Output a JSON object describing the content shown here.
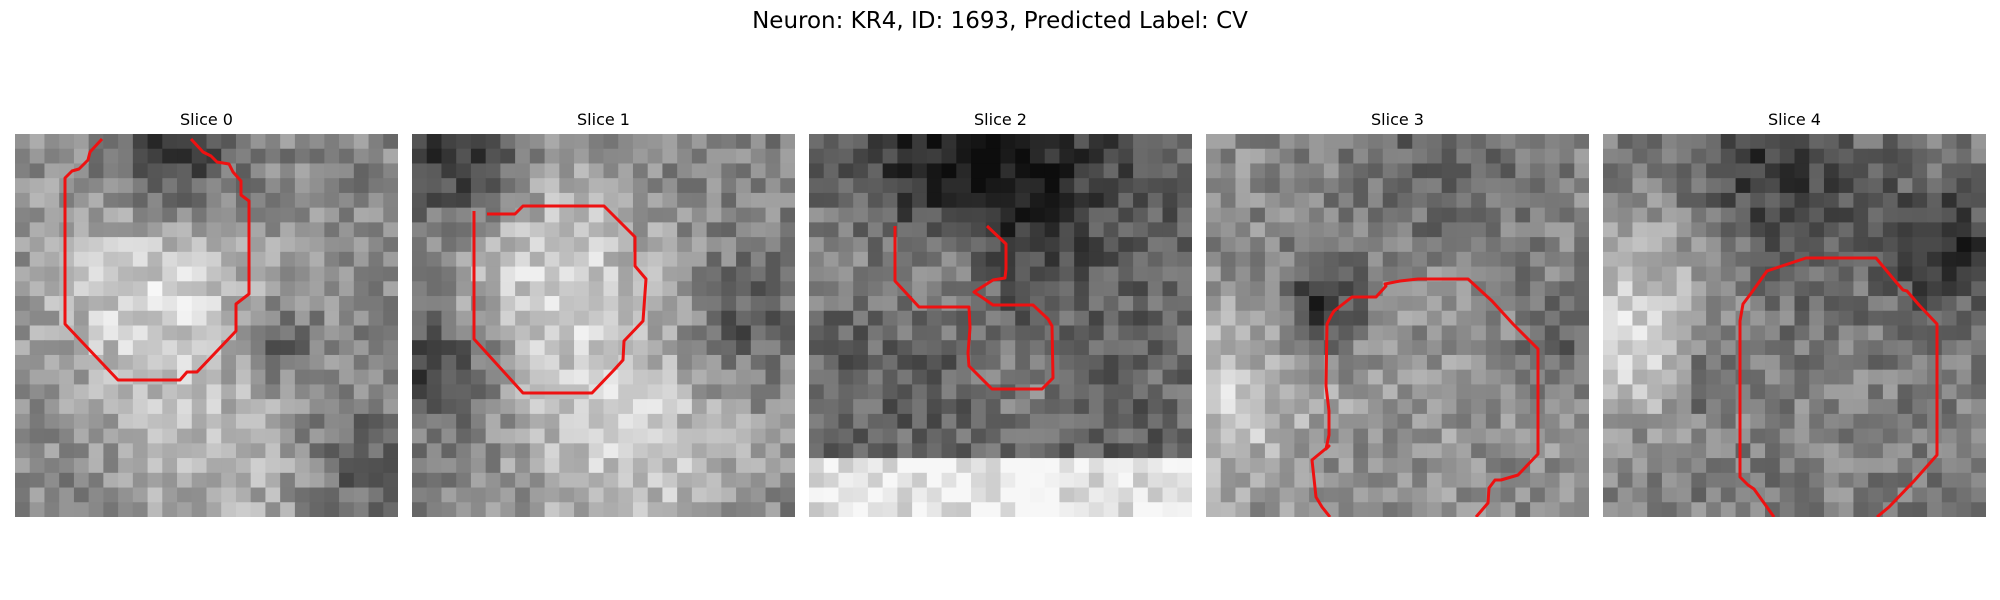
{
  "figure_title": "Neuron: KR4, ID: 1693, Predicted Label: CV",
  "colors": {
    "contour": "#ee1111",
    "background": "#ffffff"
  },
  "panels": [
    {
      "title": "Slice 0"
    },
    {
      "title": "Slice 1"
    },
    {
      "title": "Slice 2"
    },
    {
      "title": "Slice 3"
    },
    {
      "title": "Slice 4"
    }
  ]
}
